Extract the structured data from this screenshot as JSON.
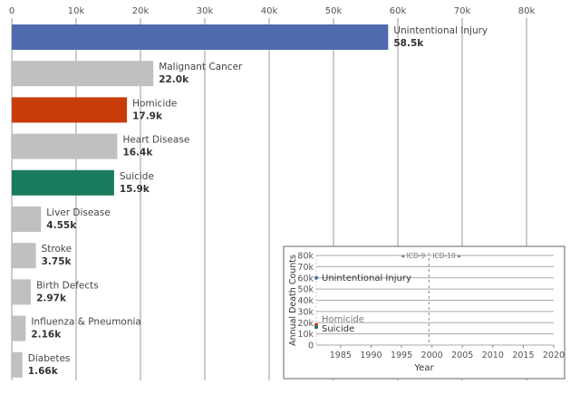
{
  "chart_data": [
    {
      "type": "bar",
      "orientation": "horizontal",
      "xlim": [
        0,
        80000
      ],
      "ticks": [
        "0",
        "10k",
        "20k",
        "30k",
        "40k",
        "50k",
        "60k",
        "70k",
        "80k"
      ],
      "tick_values": [
        0,
        10000,
        20000,
        30000,
        40000,
        50000,
        60000,
        70000,
        80000
      ],
      "grid": true,
      "categories": [
        "Unintentional Injury",
        "Malignant Cancer",
        "Homicide",
        "Heart Disease",
        "Suicide",
        "Liver Disease",
        "Stroke",
        "Birth Defects",
        "Influenza & Pneumonia",
        "Diabetes"
      ],
      "values": [
        58500,
        22000,
        17900,
        16400,
        15900,
        4550,
        3750,
        2970,
        2160,
        1660
      ],
      "value_labels": [
        "58.5k",
        "22.0k",
        "17.9k",
        "16.4k",
        "15.9k",
        "4.55k",
        "3.75k",
        "2.97k",
        "2.16k",
        "1.66k"
      ],
      "colors": [
        "#4f6aad",
        "#c0c0c0",
        "#c83c0a",
        "#c0c0c0",
        "#1a7a5e",
        "#c0c0c0",
        "#c0c0c0",
        "#c0c0c0",
        "#c0c0c0",
        "#c0c0c0"
      ]
    },
    {
      "type": "line",
      "xlabel": "Year",
      "ylabel": "Annual Death Counts",
      "xlim": [
        1981,
        2020
      ],
      "ylim": [
        0,
        80000
      ],
      "xticks": [
        1985,
        1990,
        1995,
        2000,
        2005,
        2010,
        2015,
        2020
      ],
      "yticks": [
        0,
        10000,
        20000,
        30000,
        40000,
        50000,
        60000,
        70000,
        80000
      ],
      "ytick_labels": [
        "0",
        "10k",
        "20k",
        "30k",
        "40k",
        "50k",
        "60k",
        "70k",
        "80k"
      ],
      "grid": true,
      "annotations": {
        "divider_year": 1999.5,
        "left": "ICD-9",
        "right": "ICD-10"
      },
      "series": [
        {
          "name": "Unintentional Injury",
          "x": [
            1981
          ],
          "y": [
            60000
          ],
          "color": "#4f6aad"
        },
        {
          "name": "Homicide",
          "x": [
            1981
          ],
          "y": [
            18000
          ],
          "color": "#c83c0a"
        },
        {
          "name": "Suicide",
          "x": [
            1981
          ],
          "y": [
            16000
          ],
          "color": "#1a7a5e"
        }
      ]
    }
  ]
}
